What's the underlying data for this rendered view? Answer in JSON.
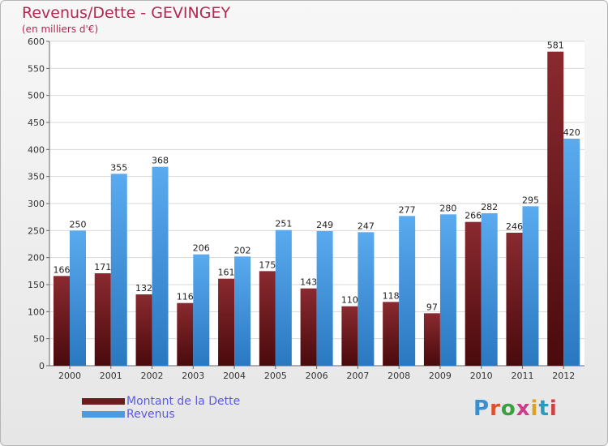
{
  "header": {
    "title": "Revenus/Dette - GEVINGEY",
    "subtitle": "(en milliers d'€)"
  },
  "legend": {
    "items": [
      {
        "label": "Montant de la Dette",
        "color": "#6e1a1e"
      },
      {
        "label": "Revenus",
        "color": "#4a9be0"
      }
    ]
  },
  "logo": {
    "text": "Proxiti",
    "colors": [
      "#3a8fd0",
      "#e0502a",
      "#3aa040",
      "#d03a8a",
      "#e0a020",
      "#2a9ac0",
      "#d04040"
    ]
  },
  "chart_data": {
    "type": "bar",
    "categories": [
      "2000",
      "2001",
      "2002",
      "2003",
      "2004",
      "2005",
      "2006",
      "2007",
      "2008",
      "2009",
      "2010",
      "2011",
      "2012"
    ],
    "series": [
      {
        "name": "Montant de la Dette",
        "values": [
          166,
          171,
          132,
          116,
          161,
          175,
          143,
          110,
          118,
          97,
          266,
          246,
          581
        ],
        "color": "#6e1a1e"
      },
      {
        "name": "Revenus",
        "values": [
          250,
          355,
          368,
          206,
          202,
          251,
          249,
          247,
          277,
          280,
          282,
          295,
          420
        ],
        "color": "#4a9be0"
      }
    ],
    "ylim": [
      0,
      600
    ],
    "yticks": [
      0,
      50,
      100,
      150,
      200,
      250,
      300,
      350,
      400,
      450,
      500,
      550,
      600
    ],
    "grid": true,
    "legend_position": "bottom-left"
  }
}
